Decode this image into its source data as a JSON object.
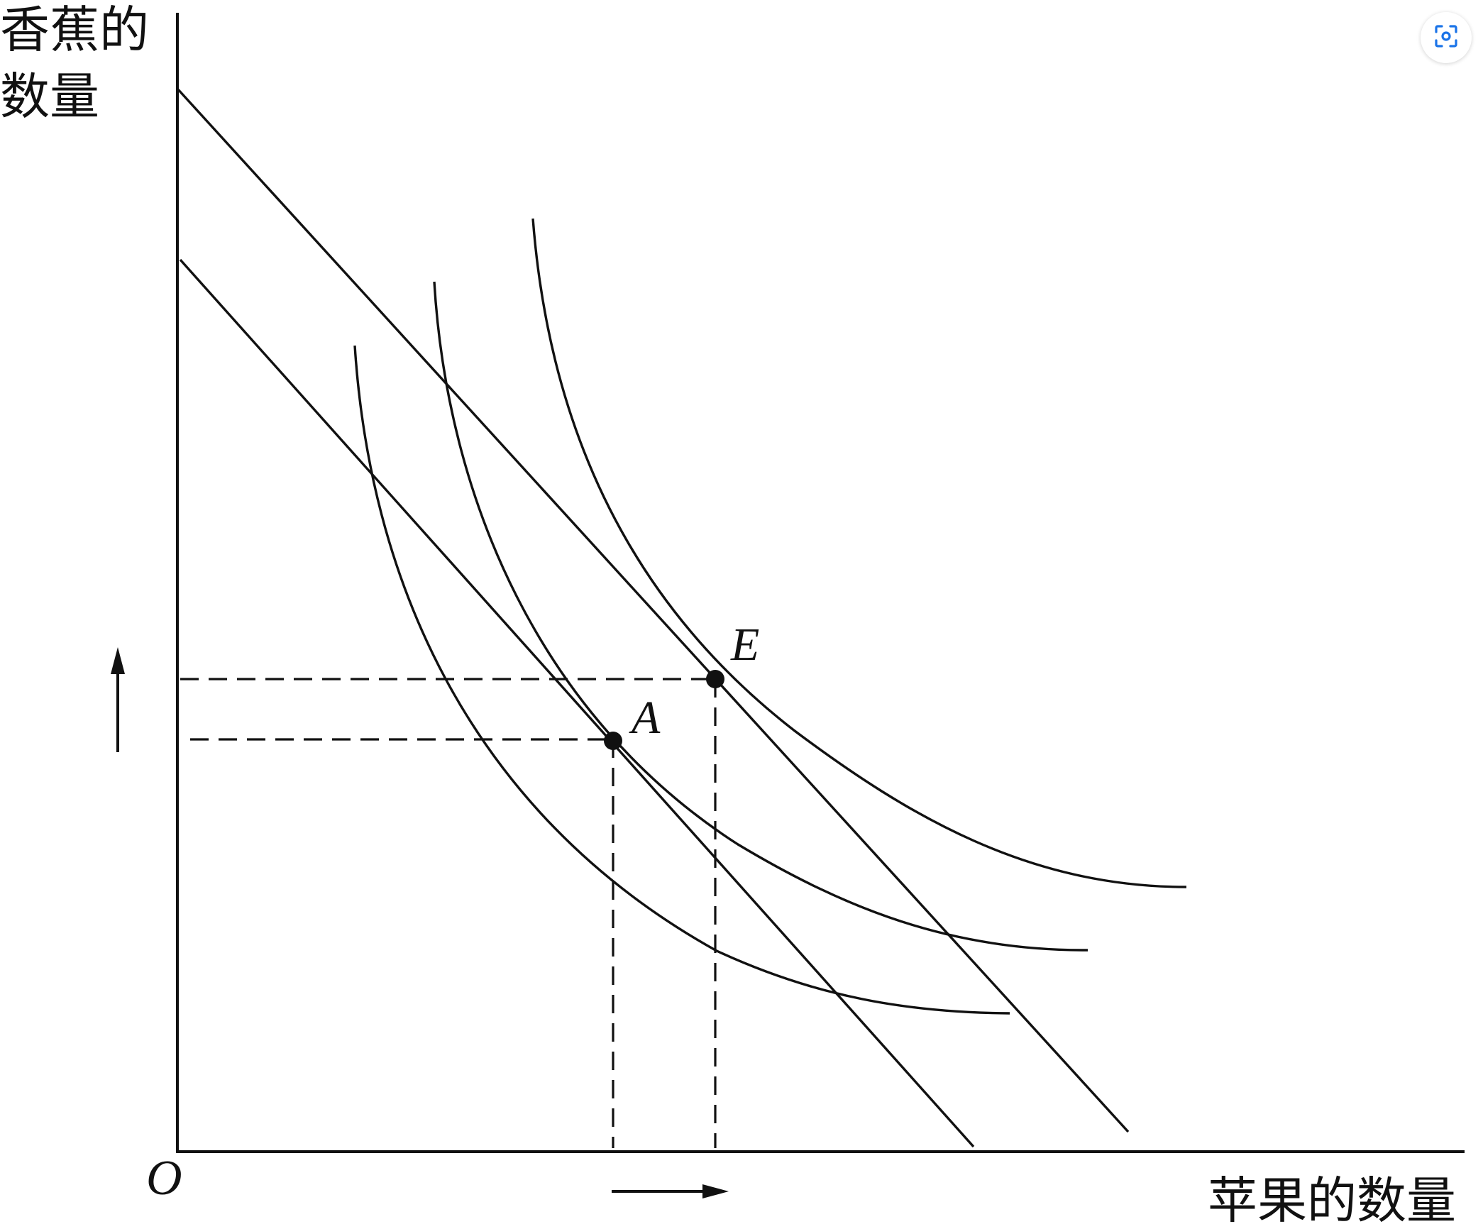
{
  "diagram": {
    "y_axis_label_line1": "香蕉的",
    "y_axis_label_line2": "数量",
    "x_axis_label": "苹果的数量",
    "origin_label": "O",
    "point_a_label": "A",
    "point_e_label": "E"
  },
  "icons": {
    "lens_button": "image-search-icon",
    "up_arrow": "up-arrow-icon",
    "right_arrow": "right-arrow-icon"
  },
  "colors": {
    "lens_accent": "#1a73e8",
    "ink": "#111111"
  }
}
